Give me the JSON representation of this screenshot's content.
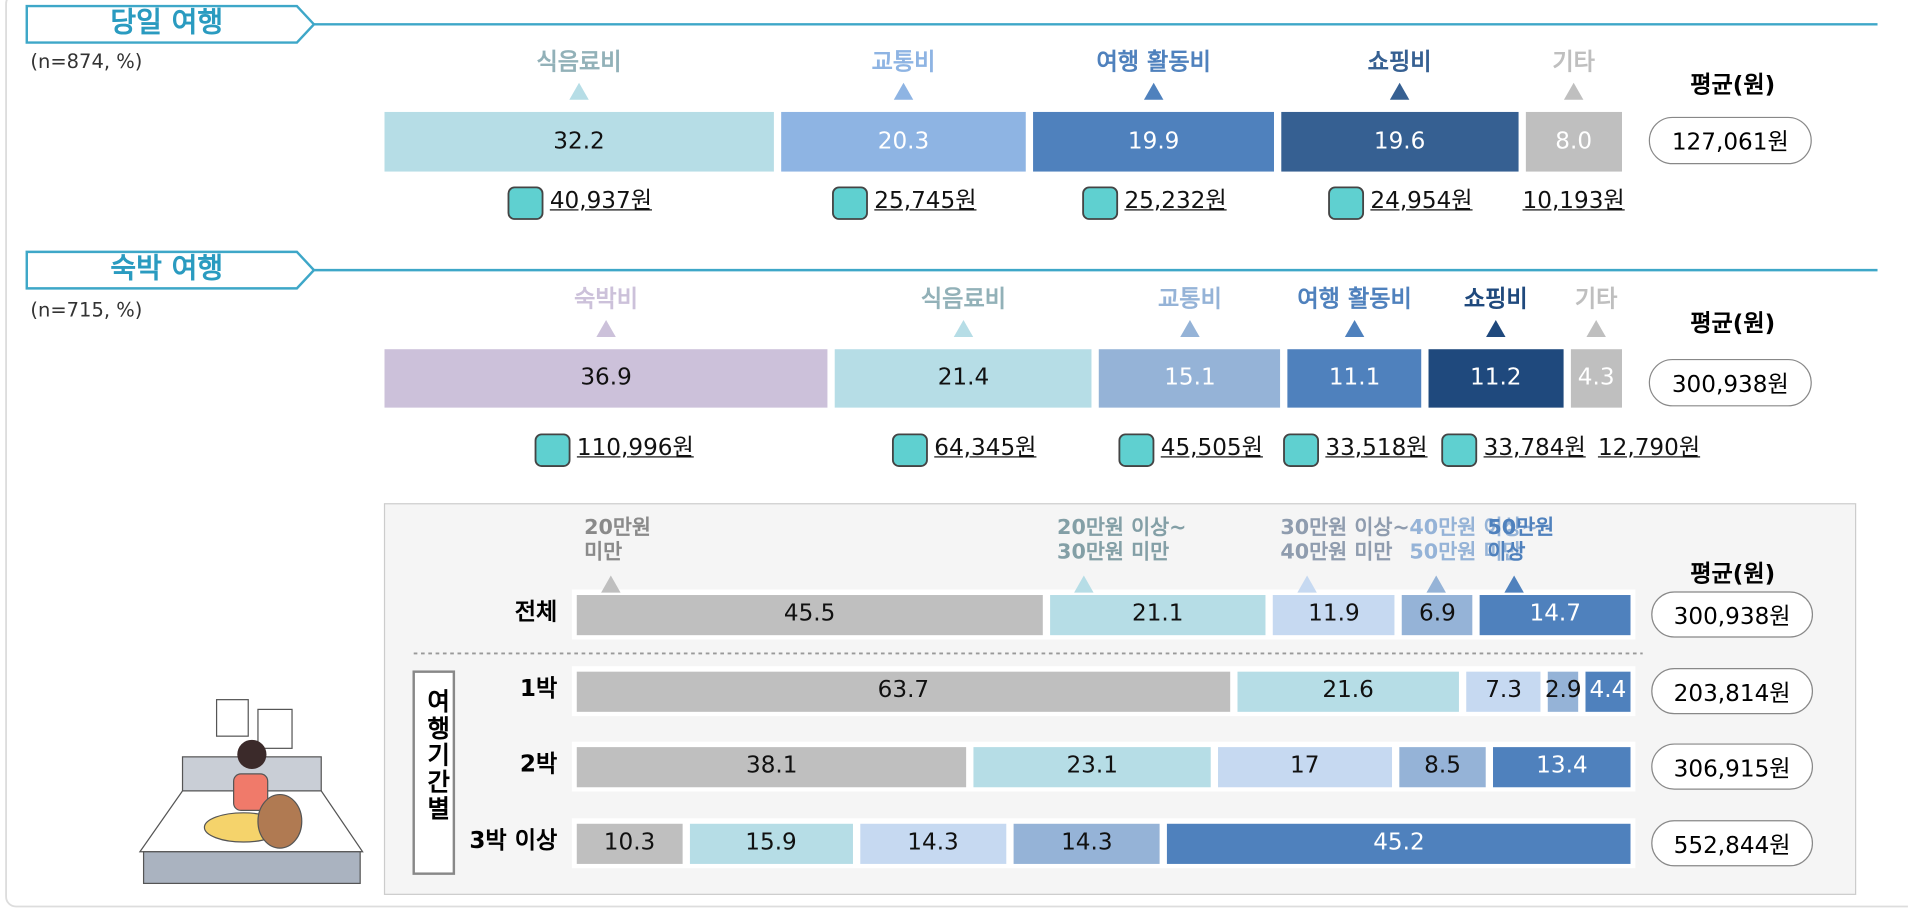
{
  "chart_data": [
    {
      "type": "stacked_bar",
      "title": "당일 여행",
      "subtitle": "(n=874, %)",
      "categories": [
        "식음료비",
        "교통비",
        "여행 활동비",
        "쇼핑비",
        "기타"
      ],
      "values": [
        32.2,
        20.3,
        19.9,
        19.6,
        8.0
      ],
      "value_labels": [
        "32.2",
        "20.3",
        "19.9",
        "19.6",
        "8.0"
      ],
      "colors": [
        "#b6dde6",
        "#8eb4e3",
        "#4f81bd",
        "#366092",
        "#bfbfbf"
      ],
      "amounts": [
        "40,937원",
        "25,745원",
        "25,232원",
        "24,954원",
        "10,193원"
      ],
      "average_label": "평균(원)",
      "average": "127,061원"
    },
    {
      "type": "stacked_bar",
      "title": "숙박 여행",
      "subtitle": "(n=715, %)",
      "categories": [
        "숙박비",
        "식음료비",
        "교통비",
        "여행 활동비",
        "쇼핑비",
        "기타"
      ],
      "values": [
        36.9,
        21.4,
        15.1,
        11.1,
        11.2,
        4.3
      ],
      "colors": [
        "#ccc1da",
        "#b6dde6",
        "#95b3d7",
        "#4f81bd",
        "#1f497d",
        "#bfbfbf"
      ],
      "amounts": [
        "110,996원",
        "64,345원",
        "45,505원",
        "33,518원",
        "33,784원",
        "12,790원"
      ],
      "average_label": "평균(원)",
      "average": "300,938원"
    },
    {
      "type": "stacked_rows",
      "categories": [
        "전체",
        "1박",
        "2박",
        "3박 이상"
      ],
      "series": [
        {
          "name": "20만원\n미만",
          "color": "#bfbfbf",
          "values": [
            45.5,
            63.7,
            38.1,
            10.3
          ]
        },
        {
          "name": "20만원 이상~\n30만원 미만",
          "color": "#b6dde6",
          "values": [
            21.1,
            21.6,
            23.1,
            15.9
          ]
        },
        {
          "name": "30만원 이상~\n40만원 미만",
          "color": "#c6d9f1",
          "values": [
            11.9,
            7.3,
            17.0,
            14.3
          ]
        },
        {
          "name": "40만원 이상~\n50만원 미만",
          "color": "#95b3d7",
          "values": [
            6.9,
            2.9,
            8.5,
            14.3
          ]
        },
        {
          "name": "50만원\n이상",
          "color": "#4f81bd",
          "values": [
            14.7,
            4.4,
            13.4,
            45.2
          ]
        }
      ],
      "group_label": "여행기간별",
      "average_label": "평균(원)",
      "averages": [
        "300,938원",
        "203,814원",
        "306,915원",
        "552,844원"
      ]
    }
  ]
}
